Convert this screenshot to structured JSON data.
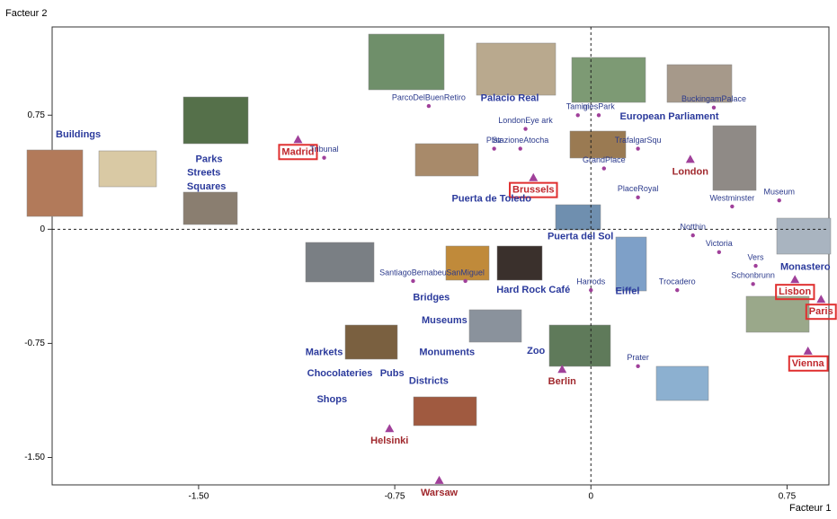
{
  "chart_data": {
    "type": "scatter",
    "xlabel": "Facteur 1",
    "ylabel": "Facteur 2",
    "xlim": [
      -2.06,
      0.91
    ],
    "ylim": [
      -1.68,
      1.33
    ],
    "xticks": [
      {
        "value": -1.5,
        "label": "-1.50"
      },
      {
        "value": -0.75,
        "label": "-0.75"
      },
      0,
      0.75
    ],
    "yticks": [
      0.75,
      0,
      {
        "value": -0.75,
        "label": "-0.75"
      },
      {
        "value": -1.5,
        "label": "-1.50"
      }
    ],
    "zero_lines": true,
    "series": [
      {
        "marker": "triangle",
        "color": "#a0409a",
        "label_color": "#c0282d",
        "boxed": true,
        "labels": [
          "Madrid",
          "Brussels",
          "Lisbon",
          "Paris",
          "Vienna"
        ],
        "x": [
          -1.12,
          -0.22,
          0.78,
          0.88,
          0.83
        ],
        "y": [
          0.59,
          0.34,
          -0.33,
          -0.46,
          -0.8
        ]
      },
      {
        "marker": "triangle",
        "color": "#a0409a",
        "label_color": "#a0282d",
        "boxed": false,
        "labels": [
          "London",
          "Berlin",
          "Helsinki",
          "Warsaw"
        ],
        "x": [
          0.38,
          -0.11,
          -0.77,
          -0.58
        ],
        "y": [
          0.46,
          -0.92,
          -1.31,
          -1.65
        ]
      },
      {
        "marker": "dot",
        "color": "#a0409a",
        "label_color": "#2b3a8c",
        "boxed": false,
        "labels": [
          "Tribunal",
          "ParcoDelBuenRetiro",
          "LondonEye ark",
          "Tamigi",
          "mesPark",
          "BuckingamPalace",
          "Plaz",
          "StazioneAtocha",
          "GrandPlace",
          "TrafalgarSqu",
          "PlaceRoyal",
          "Westminster",
          "Museum",
          "Notthin",
          "Victoria",
          "Vers",
          "Schonbrunn",
          "Trocadero",
          "Harrods",
          "SantiagoBernabeu",
          "SanMiguel",
          "Prater"
        ],
        "x": [
          -1.02,
          -0.62,
          -0.25,
          -0.05,
          0.03,
          0.47,
          -0.37,
          -0.27,
          0.05,
          0.18,
          0.18,
          0.54,
          0.72,
          0.39,
          0.49,
          0.63,
          0.62,
          0.33,
          0,
          -0.68,
          -0.48,
          0.18
        ],
        "y": [
          0.47,
          0.81,
          0.66,
          0.75,
          0.75,
          0.8,
          0.53,
          0.53,
          0.4,
          0.53,
          0.21,
          0.15,
          0.19,
          -0.04,
          -0.15,
          -0.24,
          -0.36,
          -0.4,
          -0.4,
          -0.34,
          -0.34,
          -0.9
        ]
      },
      {
        "marker": "none",
        "color": "#2b3a9c",
        "label_color": "#2b3a9c",
        "boxed": false,
        "labels": [
          "Buildings",
          "Parks",
          "Streets",
          "Squares",
          "Palacio Real",
          "European Parliament",
          "Puerta de Toledo",
          "Puerta del Sol",
          "Monastero",
          "Hard Rock Café",
          "Eiffel",
          "Bridges",
          "Museums",
          "Monuments",
          "Zoo",
          "Markets",
          "Chocolateries",
          "Pubs",
          "Districts",
          "Shops"
        ],
        "x": [
          -1.96,
          -1.46,
          -1.48,
          -1.47,
          -0.31,
          0.3,
          -0.38,
          -0.04,
          0.82,
          -0.22,
          0.14,
          -0.61,
          -0.56,
          -0.55,
          -0.21,
          -1.02,
          -0.96,
          -0.76,
          -0.62,
          -0.99
        ],
        "y": [
          0.62,
          0.46,
          0.37,
          0.28,
          0.86,
          0.74,
          0.2,
          -0.05,
          -0.25,
          -0.4,
          -0.41,
          -0.45,
          -0.6,
          -0.81,
          -0.8,
          -0.81,
          -0.95,
          -0.95,
          -1,
          -1.12
        ]
      }
    ]
  }
}
